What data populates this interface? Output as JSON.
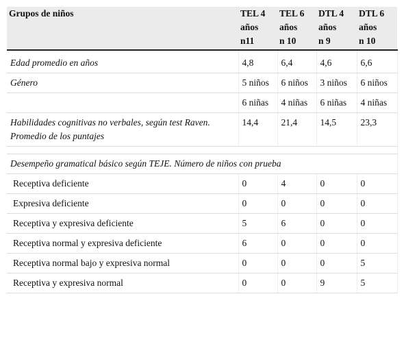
{
  "table": {
    "header": [
      {
        "label": "Grupos de niños"
      },
      {
        "label": "TEL 4 años",
        "n": "n11"
      },
      {
        "label": "TEL 6 años",
        "n": "n 10"
      },
      {
        "label": "DTL 4 años",
        "n": "n 9"
      },
      {
        "label": "DTL 6 años",
        "n": "n 10"
      }
    ],
    "rows": [
      {
        "label": "Edad promedio en años",
        "italic": true,
        "cells": [
          "4,8",
          "6,4",
          "4,6",
          "6,6"
        ]
      },
      {
        "label": "Género",
        "italic": true,
        "cells": [
          "5 niños",
          "6 niños",
          "3 niños",
          "6 niños"
        ]
      },
      {
        "cells": [
          "6 niñas",
          "4 niñas",
          "6 niñas",
          "4 niñas"
        ]
      },
      {
        "label": "Habilidades cognitivas no verbales, según test Raven. Promedio de los puntajes",
        "italic": true,
        "cells": [
          "14,4",
          "21,4",
          "14,5",
          "23,3"
        ]
      },
      {
        "spacer": true
      },
      {
        "label": "Desempeño gramatical básico según TEJE. Número de niños con prueba",
        "italic": true,
        "span": true
      },
      {
        "label": "Receptiva deficiente",
        "cells": [
          "0",
          "4",
          "0",
          "0"
        ]
      },
      {
        "label": "Expresiva deficiente",
        "cells": [
          "0",
          "0",
          "0",
          "0"
        ]
      },
      {
        "label": "Receptiva y expresiva deficiente",
        "cells": [
          "5",
          "6",
          "0",
          "0"
        ]
      },
      {
        "label": "Receptiva normal y expresiva deficiente",
        "cells": [
          "6",
          "0",
          "0",
          "0"
        ]
      },
      {
        "label": "Receptiva normal bajo y expresiva normal",
        "cells": [
          "0",
          "0",
          "0",
          "5"
        ]
      },
      {
        "label": "Receptiva y expresiva normal",
        "cells": [
          "0",
          "0",
          "9",
          "5"
        ]
      }
    ]
  }
}
